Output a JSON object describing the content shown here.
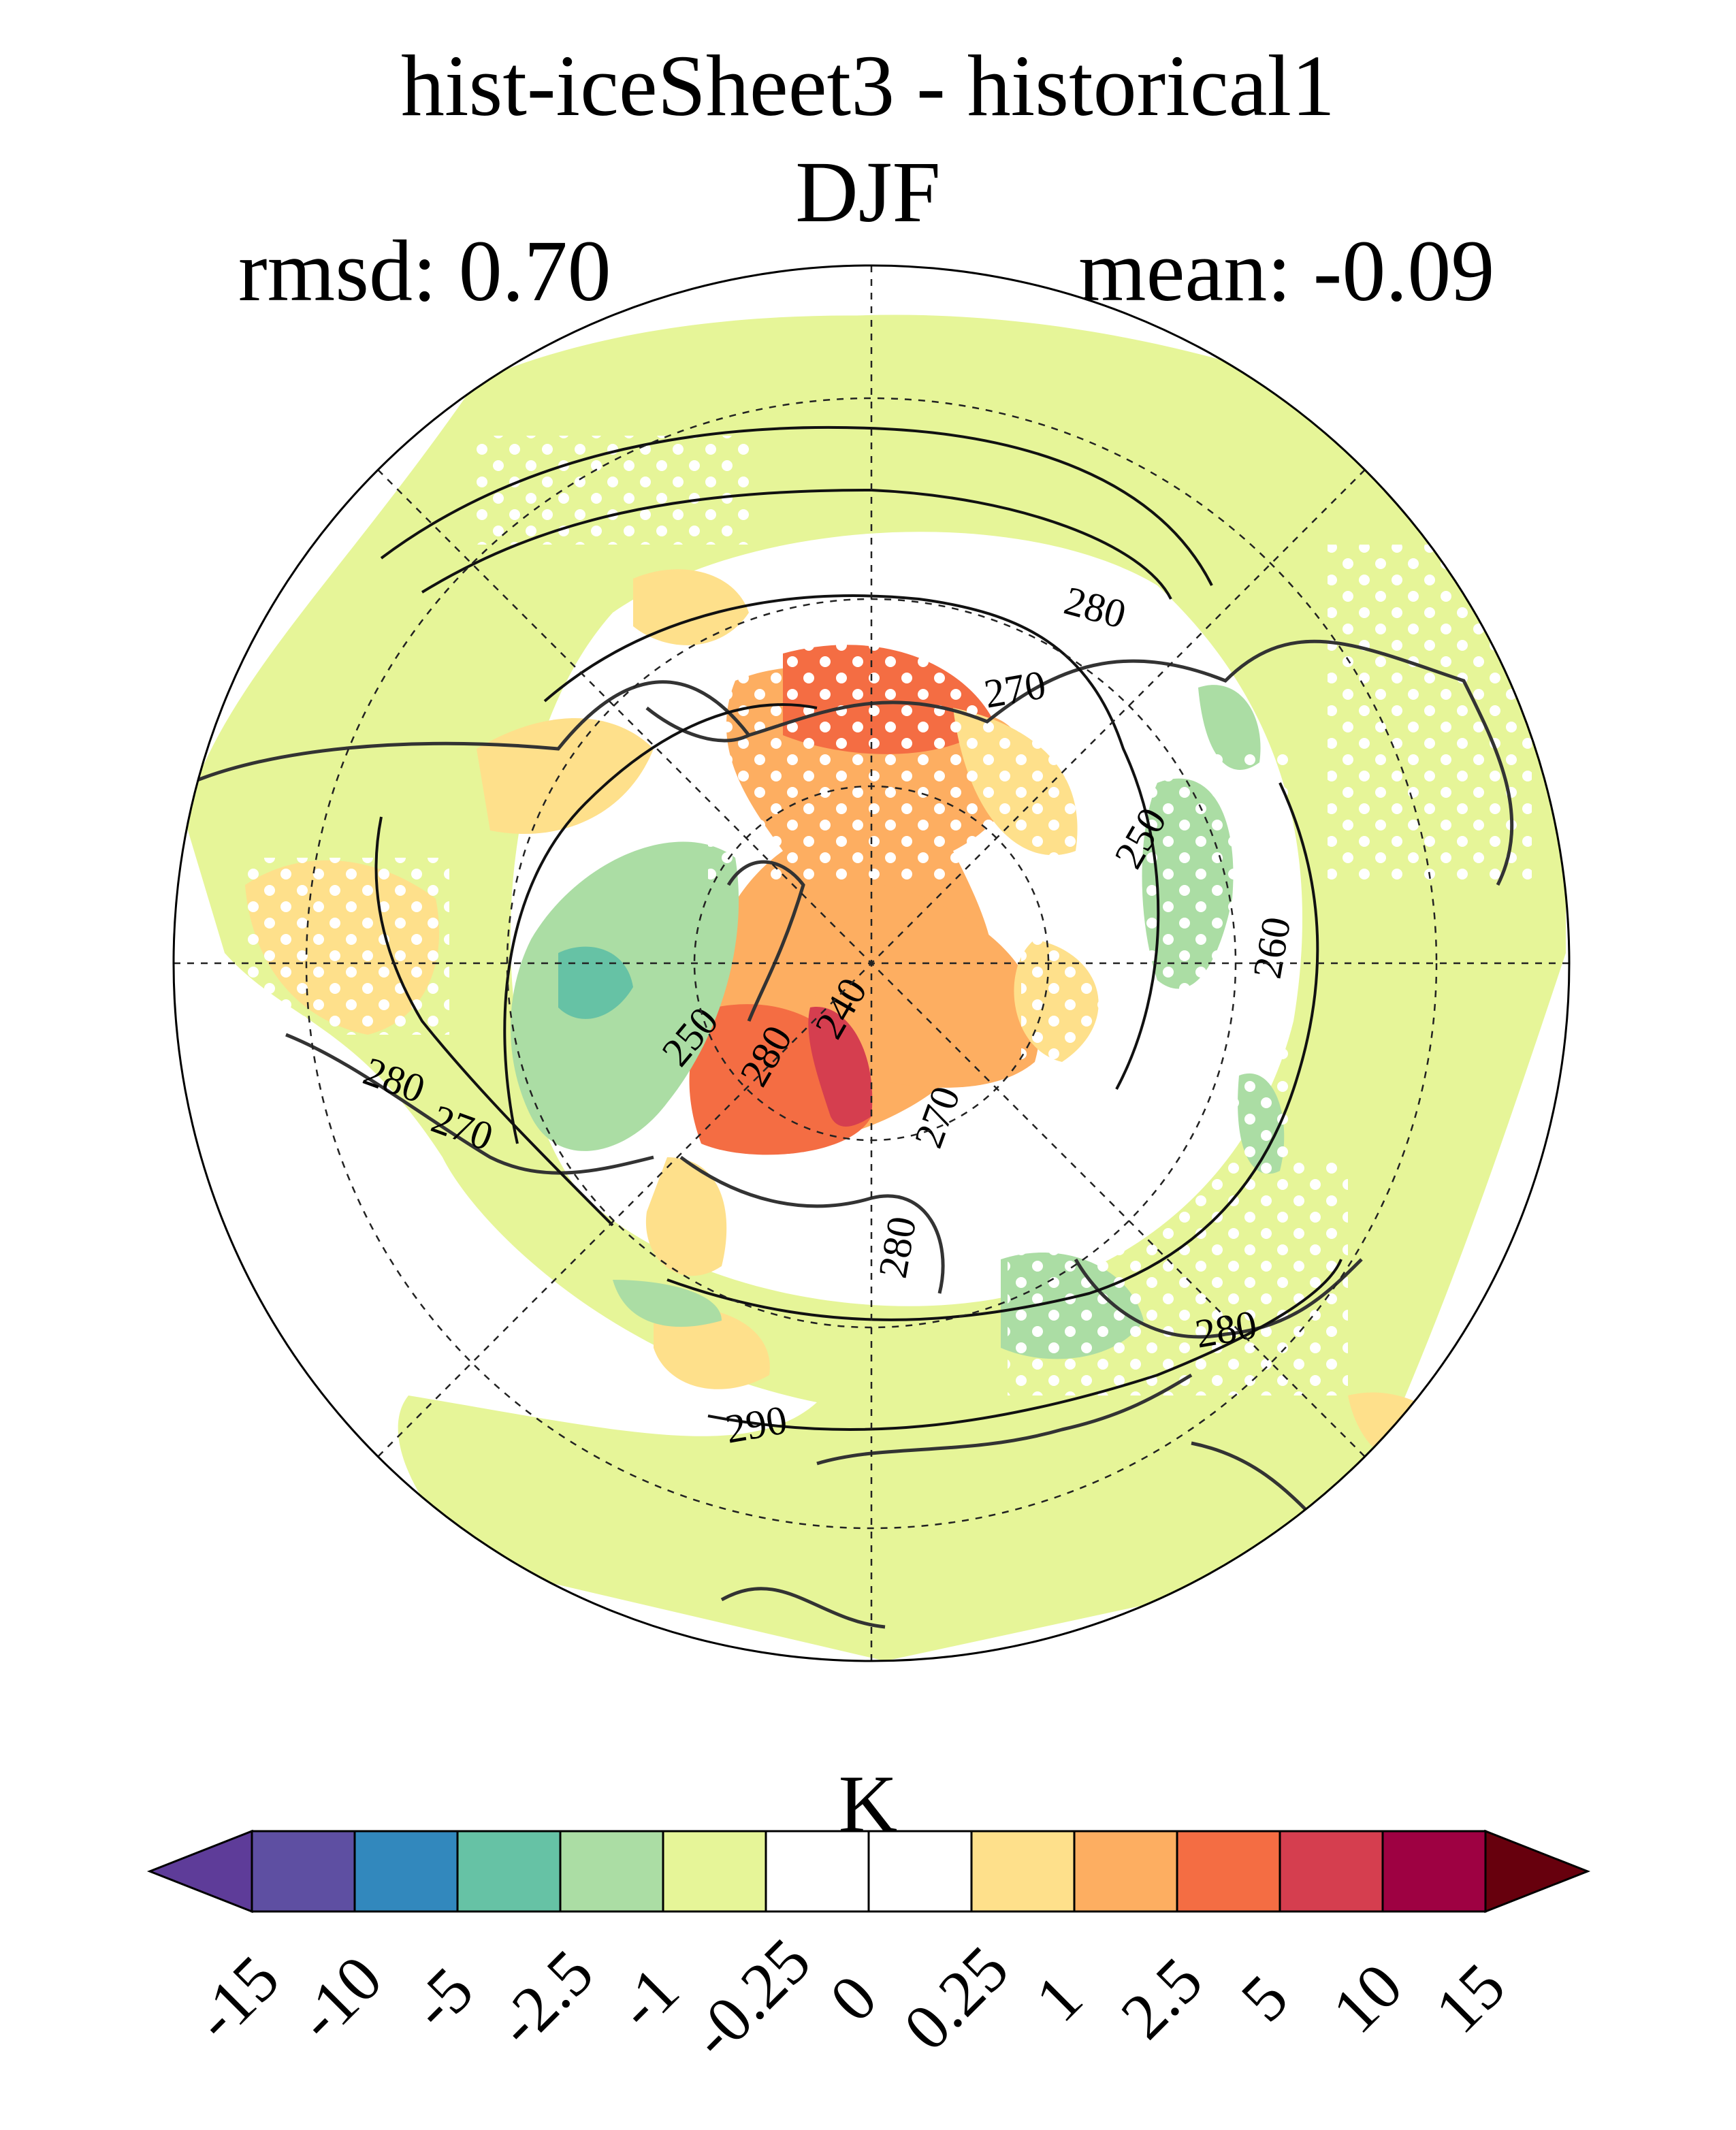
{
  "figure": {
    "title": "hist-iceSheet3 - historical1",
    "season": "DJF",
    "rmsd": "rmsd: 0.70",
    "mean": "mean: -0.09"
  },
  "map": {
    "projection": "north polar stereographic",
    "stippling": true,
    "contour_labels": [
      "280",
      "270",
      "250",
      "260",
      "280",
      "240",
      "250",
      "270",
      "280",
      "290",
      "280",
      "270",
      "280"
    ]
  },
  "colorbar": {
    "units": "K",
    "tick_labels": [
      "-15",
      "-10",
      "-5",
      "-2.5",
      "-1",
      "-0.25",
      "0",
      "0.25",
      "1",
      "2.5",
      "5",
      "10",
      "15"
    ],
    "colors": [
      "#5e3c99",
      "#5e4fa2",
      "#3288bd",
      "#66c2a5",
      "#abdda4",
      "#e6f598",
      "#ffffff",
      "#ffffff",
      "#fee08b",
      "#fdae61",
      "#f46d43",
      "#d53e4f",
      "#9e0142",
      "#67000d"
    ]
  }
}
